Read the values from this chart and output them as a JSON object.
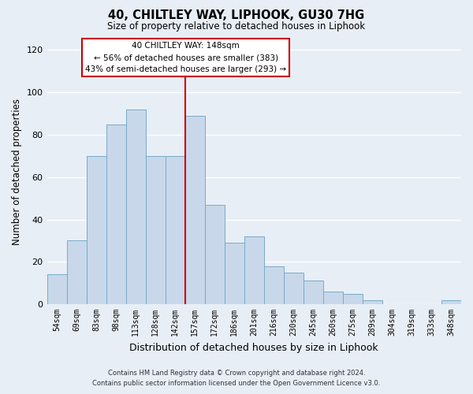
{
  "title": "40, CHILTLEY WAY, LIPHOOK, GU30 7HG",
  "subtitle": "Size of property relative to detached houses in Liphook",
  "xlabel": "Distribution of detached houses by size in Liphook",
  "ylabel": "Number of detached properties",
  "bar_labels": [
    "54sqm",
    "69sqm",
    "83sqm",
    "98sqm",
    "113sqm",
    "128sqm",
    "142sqm",
    "157sqm",
    "172sqm",
    "186sqm",
    "201sqm",
    "216sqm",
    "230sqm",
    "245sqm",
    "260sqm",
    "275sqm",
    "289sqm",
    "304sqm",
    "319sqm",
    "333sqm",
    "348sqm"
  ],
  "bar_values": [
    14,
    30,
    70,
    85,
    92,
    70,
    70,
    89,
    47,
    29,
    32,
    18,
    15,
    11,
    6,
    5,
    2,
    0,
    0,
    0,
    2
  ],
  "bar_color": "#c8d8ea",
  "bar_edge_color": "#7aaac8",
  "vline_color": "#cc0000",
  "ylim": [
    0,
    125
  ],
  "yticks": [
    0,
    20,
    40,
    60,
    80,
    100,
    120
  ],
  "annotation_title": "40 CHILTLEY WAY: 148sqm",
  "annotation_line1": "← 56% of detached houses are smaller (383)",
  "annotation_line2": "43% of semi-detached houses are larger (293) →",
  "annotation_box_color": "#ffffff",
  "annotation_box_edge": "#cc0000",
  "footer_line1": "Contains HM Land Registry data © Crown copyright and database right 2024.",
  "footer_line2": "Contains public sector information licensed under the Open Government Licence v3.0.",
  "bg_color": "#e8eef6",
  "plot_bg_color": "#e8eef6",
  "grid_color": "#ffffff"
}
